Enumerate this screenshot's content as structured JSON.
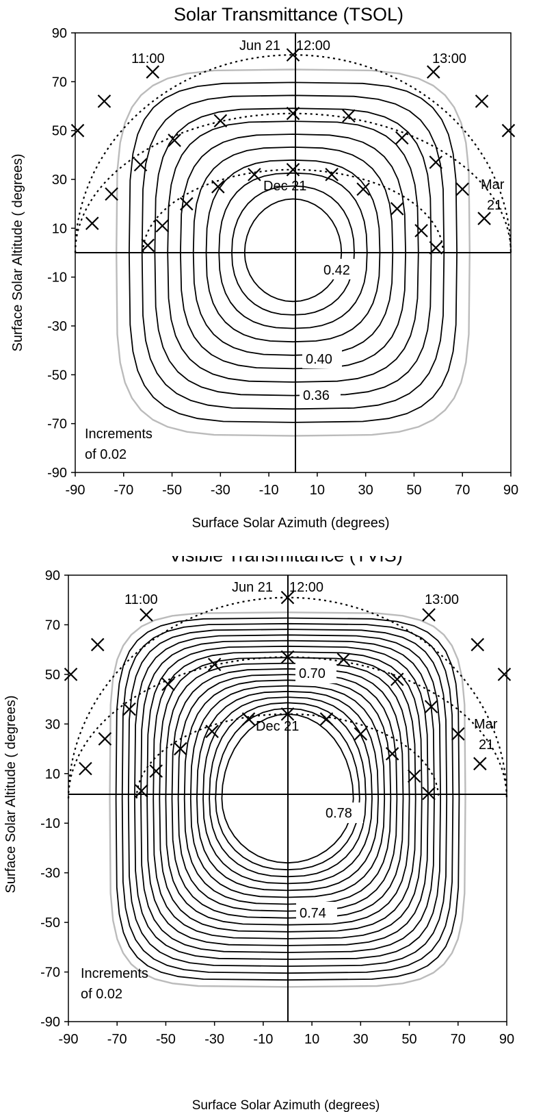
{
  "chart_data": [
    {
      "type": "contour",
      "title": "Solar Transmittance (TSOL)",
      "xlabel": "Surface Solar Azimuth (degrees)",
      "ylabel": "Surface Solar Altitude ( degrees)",
      "xlim": [
        -90,
        90
      ],
      "ylim": [
        -90,
        90
      ],
      "xticks": [
        "-90",
        "-70",
        "-50",
        "-30",
        "-10",
        "10",
        "30",
        "50",
        "70",
        "90"
      ],
      "yticks": [
        "90",
        "70",
        "50",
        "30",
        "10",
        "-10",
        "-30",
        "-50",
        "-70",
        "-90"
      ],
      "contour_levels": [
        0.42,
        0.41,
        0.4,
        0.39,
        0.38,
        0.37,
        0.36,
        0.35,
        0.34,
        0.33,
        0.32
      ],
      "outer_boundary_color": "#bbbbbb",
      "contour_labels": [
        "0.42",
        "0.40",
        "0.36"
      ],
      "increments_note": [
        "Increments",
        "of 0.02"
      ],
      "sun_paths": [
        {
          "label": "Jun 21",
          "points": [
            [
              -89,
              50
            ],
            [
              -78,
              62
            ],
            [
              -58,
              74
            ],
            [
              0,
              81
            ],
            [
              58,
              74
            ],
            [
              78,
              62
            ],
            [
              89,
              50
            ]
          ]
        },
        {
          "label": "Mar 21",
          "points": [
            [
              -83,
              12
            ],
            [
              -75,
              24
            ],
            [
              -63,
              36
            ],
            [
              -49,
              46
            ],
            [
              -30,
              54
            ],
            [
              0,
              57
            ],
            [
              23,
              56
            ],
            [
              45,
              47
            ],
            [
              59,
              37
            ],
            [
              70,
              26
            ],
            [
              79,
              14
            ]
          ]
        },
        {
          "label": "Dec 21",
          "points": [
            [
              -60,
              3
            ],
            [
              -54,
              11
            ],
            [
              -44,
              20
            ],
            [
              -31,
              27
            ],
            [
              -16,
              32
            ],
            [
              0,
              34
            ],
            [
              16,
              32
            ],
            [
              29,
              26
            ],
            [
              43,
              18
            ],
            [
              53,
              9
            ],
            [
              59,
              2
            ]
          ]
        }
      ],
      "hour_labels": [
        "11:00",
        "12:00",
        "13:00"
      ],
      "season_labels": [
        "Jun 21",
        "Mar",
        "21",
        "Dec 21"
      ]
    },
    {
      "type": "contour",
      "title": "Visible Transmittance (TVIS)",
      "xlabel": "Surface Solar Azimuth (degrees)",
      "ylabel": "Surface Solar Altitude ( degrees)",
      "xlim": [
        -90,
        90
      ],
      "ylim": [
        -90,
        90
      ],
      "xticks": [
        "-90",
        "-70",
        "-50",
        "-30",
        "-10",
        "10",
        "30",
        "50",
        "70",
        "90"
      ],
      "yticks": [
        "90",
        "70",
        "50",
        "30",
        "10",
        "-10",
        "-30",
        "-50",
        "-70",
        "-90"
      ],
      "contour_levels": [
        0.78,
        0.77,
        0.76,
        0.75,
        0.74,
        0.73,
        0.72,
        0.71,
        0.7,
        0.69,
        0.68,
        0.67,
        0.66,
        0.65,
        0.64,
        0.63,
        0.62,
        0.61,
        0.6
      ],
      "outer_boundary_color": "#bbbbbb",
      "contour_labels": [
        "0.70",
        "0.78",
        "0.74"
      ],
      "increments_note": [
        "Increments",
        "of 0.02"
      ],
      "sun_paths": [
        {
          "label": "Jun 21",
          "points": [
            [
              -89,
              50
            ],
            [
              -78,
              62
            ],
            [
              -58,
              74
            ],
            [
              0,
              81
            ],
            [
              58,
              74
            ],
            [
              78,
              62
            ],
            [
              89,
              50
            ]
          ]
        },
        {
          "label": "Mar 21",
          "points": [
            [
              -83,
              12
            ],
            [
              -75,
              24
            ],
            [
              -65,
              36
            ],
            [
              -49,
              46
            ],
            [
              -30,
              54
            ],
            [
              0,
              57
            ],
            [
              23,
              56
            ],
            [
              45,
              48
            ],
            [
              59,
              37
            ],
            [
              70,
              26
            ],
            [
              79,
              14
            ]
          ]
        },
        {
          "label": "Dec 21",
          "points": [
            [
              -60,
              3
            ],
            [
              -54,
              11
            ],
            [
              -44,
              20
            ],
            [
              -31,
              27
            ],
            [
              -16,
              32
            ],
            [
              0,
              34
            ],
            [
              16,
              32
            ],
            [
              30,
              26
            ],
            [
              43,
              18
            ],
            [
              52,
              9
            ],
            [
              58,
              2
            ]
          ]
        }
      ],
      "hour_labels": [
        "11:00",
        "12:00",
        "13:00"
      ],
      "season_labels": [
        "Jun 21",
        "Mar",
        "21",
        "Dec 21"
      ]
    }
  ]
}
